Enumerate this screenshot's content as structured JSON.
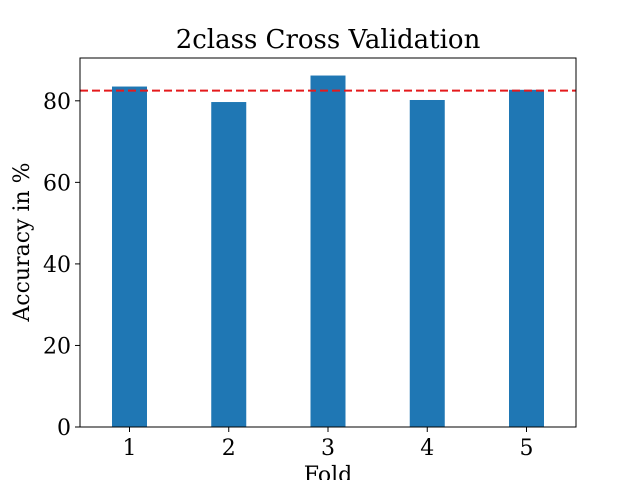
{
  "chart_data": {
    "type": "bar",
    "title": "2class Cross Validation",
    "xlabel": "Fold",
    "ylabel": "Accuracy in %",
    "categories": [
      "1",
      "2",
      "3",
      "4",
      "5"
    ],
    "values": [
      83.5,
      79.7,
      86.2,
      80.2,
      82.7
    ],
    "mean_line": {
      "value": 82.5,
      "color": "#e41a1c",
      "style": "dashed"
    },
    "ylim": [
      0,
      90.5
    ],
    "yticks": [
      0,
      20,
      40,
      60,
      80
    ],
    "bar_color": "#1f77b4",
    "grid": false,
    "legend": "none"
  }
}
